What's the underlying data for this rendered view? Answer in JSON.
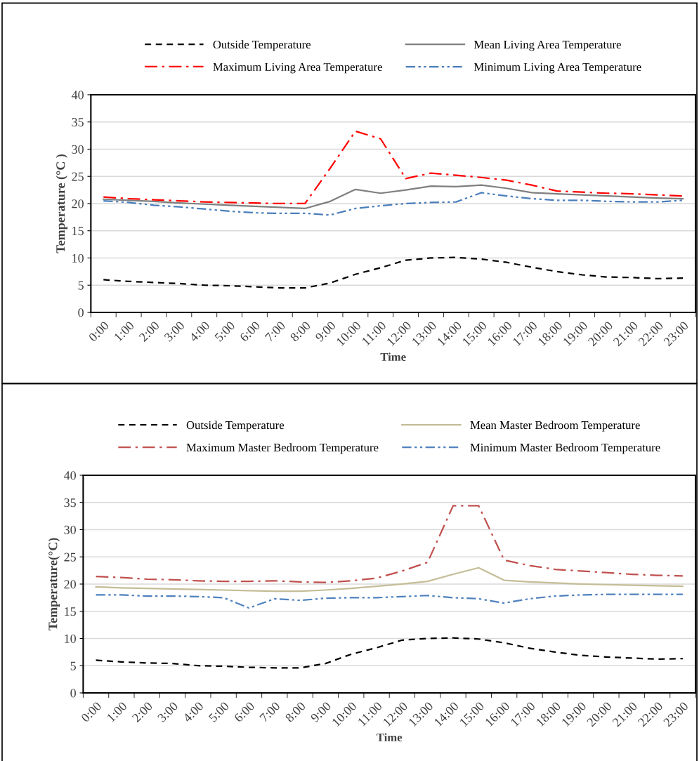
{
  "chart_data": [
    {
      "type": "line",
      "xlabel": "Time",
      "ylabel": "Temperature (°C )",
      "categories": [
        "0:00",
        "1:00",
        "2:00",
        "3:00",
        "4:00",
        "5:00",
        "6:00",
        "7:00",
        "8:00",
        "9:00",
        "10:00",
        "11:00",
        "12:00",
        "13:00",
        "14:00",
        "15:00",
        "16:00",
        "17:00",
        "18:00",
        "19:00",
        "20:00",
        "21:00",
        "22:00",
        "23:00"
      ],
      "ylim": [
        0,
        40
      ],
      "yticks": [
        0,
        5,
        10,
        15,
        20,
        25,
        30,
        35,
        40
      ],
      "grid": "y",
      "legend": "top",
      "marker": "none",
      "series": [
        {
          "name": "Outside Temperature",
          "color": "#000000",
          "line_style": "dashed",
          "values": [
            6.0,
            5.7,
            5.5,
            5.3,
            5.0,
            4.9,
            4.7,
            4.5,
            4.5,
            5.4,
            7.0,
            8.2,
            9.6,
            10.0,
            10.1,
            9.8,
            9.2,
            8.3,
            7.5,
            6.9,
            6.5,
            6.4,
            6.2,
            6.3
          ]
        },
        {
          "name": "Mean Living Area Temperature",
          "color": "#7f7f7f",
          "line_style": "solid",
          "values": [
            20.8,
            20.6,
            20.4,
            20.1,
            19.9,
            19.7,
            19.5,
            19.3,
            19.1,
            20.4,
            22.6,
            21.9,
            22.5,
            23.2,
            23.1,
            23.4,
            22.8,
            22.0,
            21.8,
            21.6,
            21.4,
            21.2,
            21.0,
            20.9
          ]
        },
        {
          "name": "Maximum Living Area Temperature",
          "color": "#ff0000",
          "line_style": "dashdot",
          "values": [
            21.2,
            20.9,
            20.7,
            20.5,
            20.3,
            20.2,
            20.1,
            20.0,
            20.0,
            26.5,
            33.3,
            31.9,
            24.6,
            25.6,
            25.2,
            24.8,
            24.3,
            23.4,
            22.3,
            22.1,
            21.9,
            21.8,
            21.6,
            21.4
          ]
        },
        {
          "name": "Minimum Living Area Temperature",
          "color": "#4a7ebb",
          "line_style": "dashdotdot",
          "values": [
            20.5,
            20.2,
            19.7,
            19.4,
            19.0,
            18.6,
            18.3,
            18.2,
            18.2,
            17.9,
            19.1,
            19.6,
            20.0,
            20.2,
            20.3,
            22.0,
            21.4,
            20.9,
            20.6,
            20.6,
            20.4,
            20.3,
            20.3,
            20.6
          ]
        }
      ]
    },
    {
      "type": "line",
      "xlabel": "Time",
      "ylabel": "Temperature(°C)",
      "categories": [
        "0:00",
        "1:00",
        "2:00",
        "3:00",
        "4:00",
        "5:00",
        "6:00",
        "7:00",
        "8:00",
        "9:00",
        "10:00",
        "11:00",
        "12:00",
        "13:00",
        "14:00",
        "15:00",
        "16:00",
        "17:00",
        "18:00",
        "19:00",
        "20:00",
        "21:00",
        "22:00",
        "23:00"
      ],
      "ylim": [
        0,
        40
      ],
      "yticks": [
        0,
        5,
        10,
        15,
        20,
        25,
        30,
        35,
        40
      ],
      "grid": "y",
      "legend": "top",
      "marker": "none",
      "series": [
        {
          "name": "Outside Temperature",
          "color": "#000000",
          "line_style": "dashed",
          "values": [
            6.0,
            5.7,
            5.5,
            5.4,
            5.0,
            4.9,
            4.7,
            4.6,
            4.6,
            5.4,
            7.1,
            8.3,
            9.7,
            10.0,
            10.1,
            9.9,
            9.2,
            8.2,
            7.5,
            6.9,
            6.6,
            6.4,
            6.2,
            6.3
          ]
        },
        {
          "name": "Mean Master Bedroom Temperature",
          "color": "#c4bd97",
          "line_style": "solid",
          "values": [
            19.5,
            19.3,
            19.2,
            19.1,
            19.0,
            18.9,
            18.8,
            18.7,
            18.7,
            18.9,
            19.2,
            19.6,
            20.0,
            20.5,
            21.8,
            23.0,
            20.7,
            20.4,
            20.2,
            20.0,
            19.9,
            19.8,
            19.7,
            19.6
          ]
        },
        {
          "name": "Maximum Master Bedroom Temperature",
          "color": "#c0504d",
          "line_style": "dashdot",
          "values": [
            21.4,
            21.2,
            20.9,
            20.8,
            20.6,
            20.5,
            20.5,
            20.6,
            20.4,
            20.3,
            20.6,
            21.1,
            22.4,
            24.0,
            34.4,
            34.4,
            24.4,
            23.4,
            22.7,
            22.4,
            22.1,
            21.8,
            21.6,
            21.5
          ]
        },
        {
          "name": "Minimum Master Bedroom Temperature",
          "color": "#4f81bd",
          "line_style": "dashdotdot",
          "values": [
            18.0,
            18.0,
            17.8,
            17.8,
            17.7,
            17.5,
            15.6,
            17.3,
            17.0,
            17.4,
            17.5,
            17.5,
            17.7,
            17.9,
            17.5,
            17.3,
            16.5,
            17.3,
            17.8,
            18.0,
            18.1,
            18.1,
            18.1,
            18.1
          ]
        }
      ]
    }
  ]
}
